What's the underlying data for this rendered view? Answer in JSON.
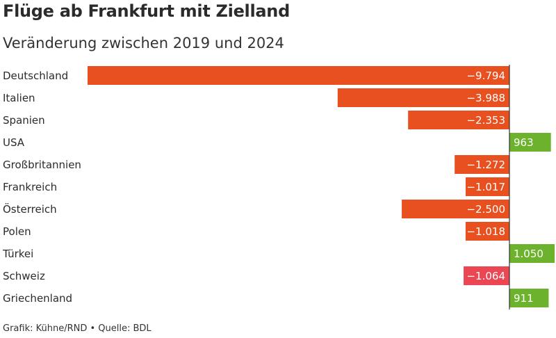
{
  "title": "Flüge ab Frankfurt mit Zielland",
  "subtitle": "Veränderung zwischen 2019 und 2024",
  "footer": "Grafik: Kühne/RND • Quelle: BDL",
  "colors": {
    "negative": "#e8501f",
    "negative_highlight": "#ea4653",
    "positive": "#6db22d",
    "axis": "#333333"
  },
  "chart_data": {
    "type": "bar",
    "orientation": "horizontal",
    "title": "Flüge ab Frankfurt mit Zielland",
    "subtitle": "Veränderung zwischen 2019 und 2024",
    "categories": [
      "Deutschland",
      "Italien",
      "Spanien",
      "USA",
      "Großbritannien",
      "Frankreich",
      "Österreich",
      "Polen",
      "Türkei",
      "Schweiz",
      "Griechenland"
    ],
    "values": [
      -9794,
      -3988,
      -2353,
      963,
      -1272,
      -1017,
      -2500,
      -1018,
      1050,
      -1064,
      911
    ],
    "value_labels": [
      "−9.794",
      "−3.988",
      "−2.353",
      "963",
      "−1.272",
      "−1.017",
      "−2.500",
      "−1.018",
      "1.050",
      "−1.064",
      "911"
    ],
    "highlight": [
      "Schweiz"
    ],
    "xlim": [
      -10000,
      1070
    ],
    "grid": false,
    "legend": "none"
  }
}
